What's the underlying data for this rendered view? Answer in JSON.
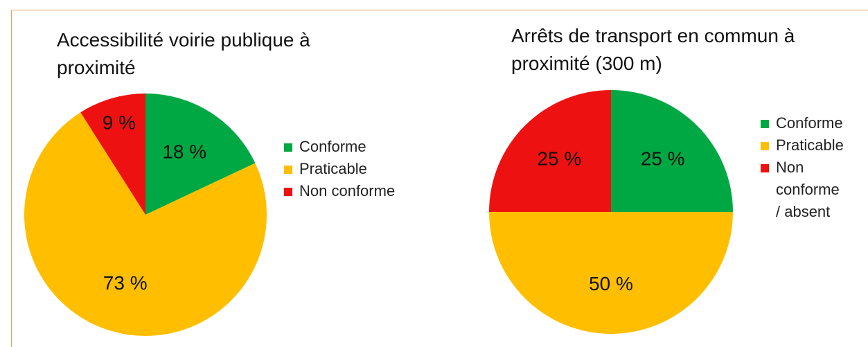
{
  "chart_data": [
    {
      "type": "pie",
      "title": "Accessibilité voirie publique à proximité",
      "categories": [
        "Conforme",
        "Praticable",
        "Non conforme"
      ],
      "values": [
        18,
        73,
        9
      ],
      "value_labels": [
        "18 %",
        "73 %",
        "9 %"
      ],
      "colors": [
        "#00a843",
        "#ffbf00",
        "#ee1111"
      ]
    },
    {
      "type": "pie",
      "title": "Arrêts de transport en commun à proximité (300 m)",
      "categories": [
        "Conforme",
        "Praticable",
        "Non conforme / absent"
      ],
      "values": [
        25,
        50,
        25
      ],
      "value_labels": [
        "25 %",
        "50 %",
        "25 %"
      ],
      "colors": [
        "#00a843",
        "#ffbf00",
        "#ee1111"
      ]
    }
  ]
}
